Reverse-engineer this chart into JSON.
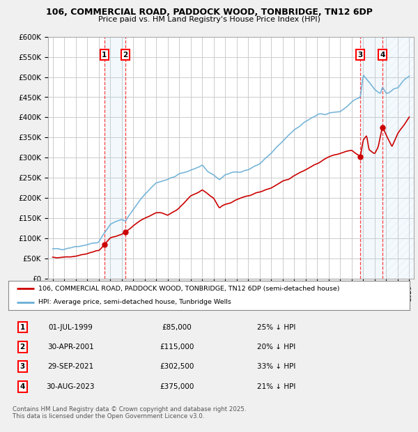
{
  "title_line1": "106, COMMERCIAL ROAD, PADDOCK WOOD, TONBRIDGE, TN12 6DP",
  "title_line2": "Price paid vs. HM Land Registry's House Price Index (HPI)",
  "ylim": [
    0,
    600000
  ],
  "yticks": [
    0,
    50000,
    100000,
    150000,
    200000,
    250000,
    300000,
    350000,
    400000,
    450000,
    500000,
    550000,
    600000
  ],
  "ytick_labels": [
    "£0",
    "£50K",
    "£100K",
    "£150K",
    "£200K",
    "£250K",
    "£300K",
    "£350K",
    "£400K",
    "£450K",
    "£500K",
    "£550K",
    "£600K"
  ],
  "xlim_start": 1994.6,
  "xlim_end": 2026.4,
  "hpi_color": "#6aaed6",
  "sale_color": "#cc0000",
  "legend_sale_label": "106, COMMERCIAL ROAD, PADDOCK WOOD, TONBRIDGE, TN12 6DP (semi-detached house)",
  "legend_hpi_label": "HPI: Average price, semi-detached house, Tunbridge Wells",
  "sales": [
    {
      "num": 1,
      "date": "01-JUL-1999",
      "year": 1999.5,
      "price": 85000,
      "pct": "25% ↓ HPI"
    },
    {
      "num": 2,
      "date": "30-APR-2001",
      "year": 2001.33,
      "price": 115000,
      "pct": "20% ↓ HPI"
    },
    {
      "num": 3,
      "date": "29-SEP-2021",
      "year": 2021.75,
      "price": 302500,
      "pct": "33% ↓ HPI"
    },
    {
      "num": 4,
      "date": "30-AUG-2023",
      "year": 2023.67,
      "price": 375000,
      "pct": "21% ↓ HPI"
    }
  ],
  "footer_line1": "Contains HM Land Registry data © Crown copyright and database right 2025.",
  "footer_line2": "This data is licensed under the Open Government Licence v3.0.",
  "bg_color": "#f0f0f0",
  "plot_bg_color": "#ffffff",
  "grid_color": "#cccccc",
  "hpi_anchors": [
    [
      1995.0,
      72000
    ],
    [
      1996.0,
      75000
    ],
    [
      1997.0,
      80000
    ],
    [
      1998.0,
      85000
    ],
    [
      1999.0,
      90000
    ],
    [
      1999.5,
      113000
    ],
    [
      2000.0,
      135000
    ],
    [
      2001.0,
      148000
    ],
    [
      2001.33,
      144000
    ],
    [
      2002.0,
      170000
    ],
    [
      2003.0,
      210000
    ],
    [
      2004.0,
      238000
    ],
    [
      2005.0,
      245000
    ],
    [
      2006.0,
      258000
    ],
    [
      2007.0,
      270000
    ],
    [
      2008.0,
      278000
    ],
    [
      2008.5,
      265000
    ],
    [
      2009.0,
      258000
    ],
    [
      2009.5,
      245000
    ],
    [
      2010.0,
      258000
    ],
    [
      2011.0,
      265000
    ],
    [
      2012.0,
      270000
    ],
    [
      2013.0,
      285000
    ],
    [
      2014.0,
      310000
    ],
    [
      2015.0,
      340000
    ],
    [
      2016.0,
      370000
    ],
    [
      2017.0,
      390000
    ],
    [
      2018.0,
      405000
    ],
    [
      2019.0,
      410000
    ],
    [
      2020.0,
      415000
    ],
    [
      2021.0,
      435000
    ],
    [
      2021.75,
      452000
    ],
    [
      2022.0,
      505000
    ],
    [
      2022.5,
      490000
    ],
    [
      2023.0,
      470000
    ],
    [
      2023.5,
      460000
    ],
    [
      2023.67,
      475000
    ],
    [
      2024.0,
      460000
    ],
    [
      2024.5,
      465000
    ],
    [
      2025.0,
      475000
    ],
    [
      2025.5,
      490000
    ],
    [
      2026.0,
      505000
    ]
  ],
  "sale_anchors": [
    [
      1995.0,
      52000
    ],
    [
      1996.0,
      54000
    ],
    [
      1997.0,
      57000
    ],
    [
      1998.0,
      62000
    ],
    [
      1999.0,
      70000
    ],
    [
      1999.5,
      85000
    ],
    [
      2000.0,
      100000
    ],
    [
      2001.0,
      110000
    ],
    [
      2001.33,
      115000
    ],
    [
      2002.0,
      130000
    ],
    [
      2003.0,
      150000
    ],
    [
      2004.0,
      165000
    ],
    [
      2005.0,
      158000
    ],
    [
      2006.0,
      175000
    ],
    [
      2007.0,
      205000
    ],
    [
      2008.0,
      220000
    ],
    [
      2008.5,
      210000
    ],
    [
      2009.0,
      200000
    ],
    [
      2009.5,
      175000
    ],
    [
      2010.0,
      185000
    ],
    [
      2011.0,
      195000
    ],
    [
      2012.0,
      205000
    ],
    [
      2013.0,
      215000
    ],
    [
      2014.0,
      225000
    ],
    [
      2015.0,
      240000
    ],
    [
      2016.0,
      255000
    ],
    [
      2017.0,
      270000
    ],
    [
      2018.0,
      285000
    ],
    [
      2019.0,
      300000
    ],
    [
      2020.0,
      310000
    ],
    [
      2021.0,
      318000
    ],
    [
      2021.75,
      302500
    ],
    [
      2022.0,
      345000
    ],
    [
      2022.3,
      355000
    ],
    [
      2022.5,
      320000
    ],
    [
      2023.0,
      310000
    ],
    [
      2023.3,
      325000
    ],
    [
      2023.67,
      375000
    ],
    [
      2024.0,
      355000
    ],
    [
      2024.5,
      330000
    ],
    [
      2025.0,
      360000
    ],
    [
      2025.5,
      380000
    ],
    [
      2026.0,
      400000
    ]
  ]
}
